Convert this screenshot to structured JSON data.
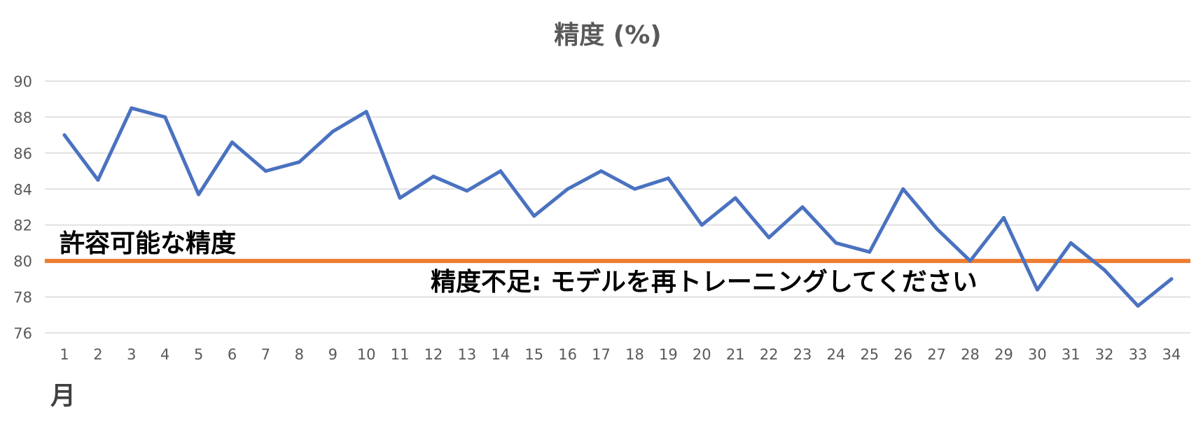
{
  "chart_data": {
    "type": "line",
    "title": "精度 (%)",
    "xlabel": "月",
    "ylabel": "",
    "x": [
      1,
      2,
      3,
      4,
      5,
      6,
      7,
      8,
      9,
      10,
      11,
      12,
      13,
      14,
      15,
      16,
      17,
      18,
      19,
      20,
      21,
      22,
      23,
      24,
      25,
      26,
      27,
      28,
      29,
      30,
      31,
      32,
      33,
      34
    ],
    "ylim": [
      76,
      90
    ],
    "yticks": [
      76,
      78,
      80,
      82,
      84,
      86,
      88,
      90
    ],
    "grid": true,
    "series": [
      {
        "values": [
          87.0,
          84.5,
          88.5,
          88.0,
          83.7,
          86.6,
          85.0,
          85.5,
          87.2,
          88.3,
          83.5,
          84.7,
          83.9,
          85.0,
          82.5,
          84.0,
          85.0,
          84.0,
          84.6,
          82.0,
          83.5,
          81.3,
          83.0,
          81.0,
          80.5,
          84.0,
          81.8,
          80.0,
          82.4,
          78.4,
          81.0,
          79.5,
          77.5,
          79.0
        ],
        "color": "#4a72c0"
      }
    ],
    "threshold": {
      "value": 80,
      "color": "#ed7d31",
      "label_above": "許容可能な精度",
      "label_below": "精度不足: モデルを再トレーニングしてください"
    },
    "colors": {
      "title": "#595959",
      "tick": "#595959",
      "grid": "#d9d9d9",
      "annotation": "#000000",
      "axis_label": "#404040"
    }
  }
}
